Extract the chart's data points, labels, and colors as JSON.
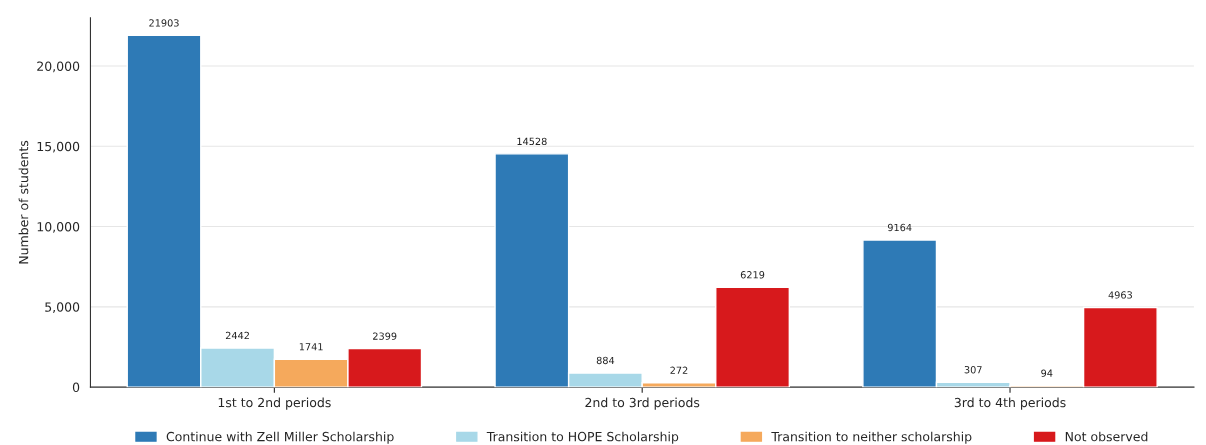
{
  "chart_data": {
    "type": "bar",
    "ylabel": "Number of students",
    "categories": [
      "1st to 2nd periods",
      "2nd to 3rd periods",
      "3rd to 4th periods"
    ],
    "series": [
      {
        "name": "Continue with Zell Miller Scholarship",
        "color": "#2e7ab6",
        "values": [
          21903,
          14528,
          9164
        ]
      },
      {
        "name": "Transition to HOPE Scholarship",
        "color": "#a8d8e8",
        "values": [
          2442,
          884,
          307
        ]
      },
      {
        "name": "Transition to neither scholarship",
        "color": "#f5a95c",
        "values": [
          1741,
          272,
          94
        ]
      },
      {
        "name": "Not observed",
        "color": "#d7191c",
        "values": [
          2399,
          6219,
          4963
        ]
      }
    ],
    "ylim": [
      0,
      23000
    ],
    "yticks": [
      0,
      {
        "value": 5000,
        "label": "5,000"
      },
      {
        "value": 10000,
        "label": "10,000"
      },
      {
        "value": 15000,
        "label": "15,000"
      },
      {
        "value": 20000,
        "label": "20,000"
      }
    ],
    "grid": "y",
    "legend": "bottom",
    "data_labels": true
  }
}
